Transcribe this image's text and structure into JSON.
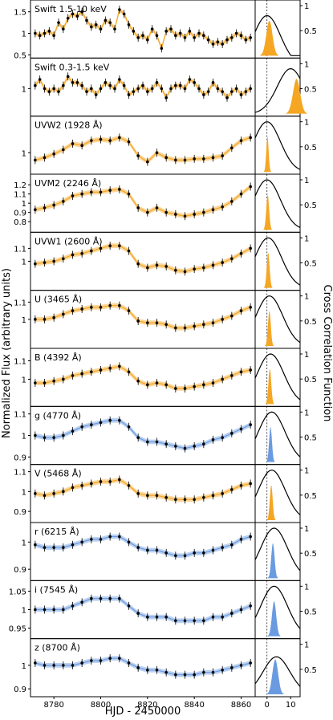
{
  "figure": {
    "ylabel_left": "Normalized Flux (arbitrary units)",
    "ylabel_right": "Cross Correlation Function",
    "xlabel": "HJD - 2450000"
  },
  "chart_data": [
    {
      "type": "line",
      "title": "Swift 1.5-10 keV",
      "color": "#f5a623",
      "xlabel": "HJD - 2450000",
      "ylim": [
        0.5,
        1.7
      ],
      "yticks": [
        1.5,
        1.0,
        0.5
      ],
      "series": [
        {
          "x": [
            8772,
            8774,
            8776,
            8778,
            8780,
            8782,
            8784,
            8786,
            8788,
            8790,
            8792,
            8794,
            8796,
            8798,
            8800,
            8802,
            8804,
            8806,
            8808,
            8810,
            8812,
            8814,
            8816,
            8818,
            8820,
            8822,
            8824,
            8826,
            8828,
            8830,
            8832,
            8834,
            8836,
            8838,
            8840,
            8842,
            8844,
            8846,
            8848,
            8850,
            8852,
            8854,
            8856,
            8858,
            8860,
            8862,
            8864
          ],
          "y": [
            1.0,
            0.95,
            1.0,
            1.05,
            0.95,
            1.25,
            1.1,
            1.35,
            1.45,
            1.4,
            1.5,
            1.3,
            1.15,
            1.2,
            1.1,
            1.3,
            1.25,
            1.1,
            1.55,
            1.45,
            1.2,
            1.05,
            0.9,
            0.95,
            0.85,
            1.1,
            0.95,
            0.65,
            1.05,
            1.1,
            0.95,
            1.0,
            0.9,
            1.05,
            0.9,
            1.0,
            0.95,
            0.85,
            0.75,
            0.8,
            0.75,
            0.85,
            0.9,
            1.0,
            0.95,
            0.85,
            0.9
          ]
        }
      ],
      "ccf": {
        "peak": -1,
        "xpeak": 0,
        "hist": "orange",
        "hist_center": 1.0,
        "hist_width": 1.3
      }
    },
    {
      "type": "line",
      "title": "Swift 0.3-1.5 keV",
      "color": "#f5a623",
      "ylim": [
        0.6,
        1.45
      ],
      "yticks": [
        1.0
      ],
      "series": [
        {
          "x": [
            8772,
            8774,
            8776,
            8778,
            8780,
            8782,
            8784,
            8786,
            8788,
            8790,
            8792,
            8794,
            8796,
            8798,
            8800,
            8802,
            8804,
            8806,
            8808,
            8810,
            8812,
            8814,
            8816,
            8818,
            8820,
            8822,
            8824,
            8826,
            8828,
            8830,
            8832,
            8834,
            8836,
            8838,
            8840,
            8842,
            8844,
            8846,
            8848,
            8850,
            8852,
            8854,
            8856,
            8858,
            8860,
            8862,
            8864
          ],
          "y": [
            1.05,
            1.15,
            1.0,
            0.95,
            1.0,
            0.95,
            1.05,
            1.2,
            1.1,
            1.1,
            1.05,
            0.95,
            1.0,
            0.9,
            1.0,
            1.1,
            1.05,
            1.0,
            1.15,
            1.05,
            0.9,
            0.95,
            1.0,
            1.05,
            0.95,
            1.0,
            1.1,
            1.0,
            0.85,
            1.0,
            1.05,
            1.05,
            1.0,
            1.15,
            1.1,
            1.0,
            0.9,
            0.95,
            1.1,
            1.0,
            0.95,
            0.85,
            0.95,
            1.0,
            0.9,
            0.95,
            1.0
          ]
        }
      ],
      "ccf": {
        "peak": 0.9,
        "xpeak": 10,
        "hist": "orange",
        "hist_center": 12.5,
        "hist_width": 1.5
      }
    },
    {
      "type": "line",
      "title": "UVW2 (1928 Å)",
      "color": "#f5a623",
      "ylim": [
        0.7,
        1.55
      ],
      "yticks": [
        1.0
      ],
      "series": [
        {
          "x": [
            8772,
            8776,
            8780,
            8784,
            8788,
            8792,
            8796,
            8800,
            8804,
            8808,
            8812,
            8816,
            8820,
            8824,
            8828,
            8832,
            8836,
            8840,
            8844,
            8848,
            8852,
            8856,
            8860,
            8864
          ],
          "y": [
            0.88,
            0.92,
            0.98,
            1.05,
            1.15,
            1.12,
            1.2,
            1.22,
            1.2,
            1.25,
            1.18,
            0.95,
            0.85,
            1.0,
            0.92,
            0.88,
            0.88,
            0.9,
            0.9,
            0.92,
            0.95,
            1.08,
            1.2,
            1.25
          ]
        }
      ],
      "ccf": {
        "peak": 1.0,
        "xpeak": 0,
        "hist": "orange",
        "hist_center": 0.2,
        "hist_width": 0.5
      }
    },
    {
      "type": "line",
      "title": "UVM2 (2246 Å)",
      "color": "#f5a623",
      "ylim": [
        0.72,
        1.28
      ],
      "yticks": [
        1.2,
        1.1,
        1.0,
        0.9,
        0.8
      ],
      "series": [
        {
          "x": [
            8772,
            8776,
            8780,
            8784,
            8788,
            8792,
            8796,
            8800,
            8804,
            8808,
            8812,
            8816,
            8820,
            8824,
            8828,
            8832,
            8836,
            8840,
            8844,
            8848,
            8852,
            8856,
            8860,
            8864
          ],
          "y": [
            0.93,
            0.95,
            0.98,
            1.02,
            1.08,
            1.1,
            1.12,
            1.12,
            1.14,
            1.15,
            1.1,
            0.95,
            0.9,
            0.95,
            0.9,
            0.88,
            0.86,
            0.88,
            0.9,
            0.93,
            0.96,
            1.02,
            1.1,
            1.18
          ]
        }
      ],
      "ccf": {
        "peak": 1.0,
        "xpeak": 0,
        "hist": "orange",
        "hist_center": 0.3,
        "hist_width": 0.6
      }
    },
    {
      "type": "line",
      "title": "UVW1 (2600 Å)",
      "color": "#f5a623",
      "ylim": [
        0.8,
        1.2
      ],
      "yticks": [
        1.1,
        1.0
      ],
      "series": [
        {
          "x": [
            8772,
            8776,
            8780,
            8784,
            8788,
            8792,
            8796,
            8800,
            8804,
            8808,
            8812,
            8816,
            8820,
            8824,
            8828,
            8832,
            8836,
            8840,
            8844,
            8848,
            8852,
            8856,
            8860,
            8864
          ],
          "y": [
            0.98,
            0.99,
            1.0,
            1.02,
            1.05,
            1.06,
            1.08,
            1.1,
            1.12,
            1.12,
            1.08,
            0.98,
            0.95,
            0.97,
            0.96,
            0.93,
            0.92,
            0.94,
            0.95,
            0.97,
            0.99,
            1.02,
            1.06,
            1.1
          ]
        }
      ],
      "ccf": {
        "peak": 1.0,
        "xpeak": 0.5,
        "hist": "orange",
        "hist_center": 0.5,
        "hist_width": 0.6
      }
    },
    {
      "type": "line",
      "title": "U (3465 Å)",
      "color": "#f5a623",
      "ylim": [
        0.85,
        1.15
      ],
      "yticks": [
        1.1,
        1.0
      ],
      "series": [
        {
          "x": [
            8772,
            8776,
            8780,
            8784,
            8788,
            8792,
            8796,
            8800,
            8804,
            8808,
            8812,
            8816,
            8820,
            8824,
            8828,
            8832,
            8836,
            8840,
            8844,
            8848,
            8852,
            8856,
            8860,
            8864
          ],
          "y": [
            1.0,
            1.0,
            1.01,
            1.03,
            1.05,
            1.06,
            1.07,
            1.07,
            1.08,
            1.08,
            1.05,
            0.99,
            0.98,
            0.98,
            0.97,
            0.95,
            0.95,
            0.96,
            0.97,
            0.98,
            1.0,
            1.02,
            1.05,
            1.07
          ]
        }
      ],
      "ccf": {
        "peak": 1.0,
        "xpeak": 1.0,
        "hist": "orange",
        "hist_center": 1.0,
        "hist_width": 0.6
      }
    },
    {
      "type": "line",
      "title": "B (4392 Å)",
      "color": "#f5a623",
      "ylim": [
        0.87,
        1.15
      ],
      "yticks": [
        1.1,
        1.0
      ],
      "series": [
        {
          "x": [
            8772,
            8776,
            8780,
            8784,
            8788,
            8792,
            8796,
            8800,
            8804,
            8808,
            8812,
            8816,
            8820,
            8824,
            8828,
            8832,
            8836,
            8840,
            8844,
            8848,
            8852,
            8856,
            8860,
            8864
          ],
          "y": [
            0.98,
            0.98,
            0.99,
            1.0,
            1.02,
            1.03,
            1.04,
            1.05,
            1.06,
            1.07,
            1.04,
            0.99,
            0.97,
            0.98,
            0.97,
            0.95,
            0.95,
            0.96,
            0.97,
            0.98,
            1.0,
            1.02,
            1.04,
            1.05
          ]
        }
      ],
      "ccf": {
        "peak": 1.0,
        "xpeak": 1.5,
        "hist": "orange",
        "hist_center": 1.2,
        "hist_width": 0.6
      }
    },
    {
      "type": "line",
      "title": "g (4770 Å)",
      "color": "#6a9be0",
      "ylim": [
        0.88,
        1.12
      ],
      "yticks": [
        1.1,
        1.0,
        0.9
      ],
      "series": [
        {
          "x": [
            8772,
            8776,
            8780,
            8784,
            8788,
            8792,
            8796,
            8800,
            8804,
            8808,
            8812,
            8816,
            8820,
            8824,
            8828,
            8832,
            8836,
            8840,
            8844,
            8848,
            8852,
            8856,
            8860,
            8864
          ],
          "y": [
            1.0,
            0.99,
            0.99,
            1.0,
            1.02,
            1.04,
            1.05,
            1.06,
            1.07,
            1.07,
            1.04,
            0.99,
            0.97,
            0.97,
            0.96,
            0.95,
            0.94,
            0.95,
            0.96,
            0.98,
            0.99,
            1.01,
            1.03,
            1.05
          ]
        }
      ],
      "ccf": {
        "peak": 1.0,
        "xpeak": 2,
        "hist": "blue",
        "hist_center": 1.5,
        "hist_width": 0.6
      }
    },
    {
      "type": "line",
      "title": "V (5468 Å)",
      "color": "#f5a623",
      "ylim": [
        0.86,
        1.12
      ],
      "yticks": [
        1.1,
        1.0,
        0.9
      ],
      "series": [
        {
          "x": [
            8772,
            8776,
            8780,
            8784,
            8788,
            8792,
            8796,
            8800,
            8804,
            8808,
            8812,
            8816,
            8820,
            8824,
            8828,
            8832,
            8836,
            8840,
            8844,
            8848,
            8852,
            8856,
            8860,
            8864
          ],
          "y": [
            0.99,
            0.98,
            0.99,
            1.0,
            1.02,
            1.03,
            1.04,
            1.05,
            1.05,
            1.06,
            1.03,
            0.99,
            0.98,
            0.98,
            0.97,
            0.96,
            0.96,
            0.96,
            0.97,
            0.98,
            0.99,
            1.01,
            1.03,
            1.04
          ]
        }
      ],
      "ccf": {
        "peak": 1.0,
        "xpeak": 2,
        "hist": "orange",
        "hist_center": 1.8,
        "hist_width": 0.6
      }
    },
    {
      "type": "line",
      "title": "r (6215 Å)",
      "color": "#6a9be0",
      "ylim": [
        0.87,
        1.06
      ],
      "yticks": [
        1.0,
        0.9
      ],
      "series": [
        {
          "x": [
            8772,
            8776,
            8780,
            8784,
            8788,
            8792,
            8796,
            8800,
            8804,
            8808,
            8812,
            8816,
            8820,
            8824,
            8828,
            8832,
            8836,
            8840,
            8844,
            8848,
            8852,
            8856,
            8860,
            8864
          ],
          "y": [
            0.99,
            0.98,
            0.98,
            0.98,
            0.99,
            1.0,
            1.01,
            1.01,
            1.02,
            1.02,
            1.0,
            0.98,
            0.97,
            0.97,
            0.96,
            0.95,
            0.95,
            0.96,
            0.96,
            0.97,
            0.98,
            0.99,
            1.01,
            1.02
          ]
        }
      ],
      "ccf": {
        "peak": 1.0,
        "xpeak": 3,
        "hist": "blue",
        "hist_center": 2.5,
        "hist_width": 0.7
      }
    },
    {
      "type": "line",
      "title": "i (7545 Å)",
      "color": "#6a9be0",
      "ylim": [
        0.93,
        1.07
      ],
      "yticks": [
        1.05,
        1.0,
        0.95
      ],
      "series": [
        {
          "x": [
            8772,
            8776,
            8780,
            8784,
            8788,
            8792,
            8796,
            8800,
            8804,
            8808,
            8812,
            8816,
            8820,
            8824,
            8828,
            8832,
            8836,
            8840,
            8844,
            8848,
            8852,
            8856,
            8860,
            8864
          ],
          "y": [
            1.0,
            1.0,
            1.0,
            1.0,
            1.01,
            1.02,
            1.03,
            1.03,
            1.03,
            1.03,
            1.01,
            0.99,
            0.98,
            0.98,
            0.98,
            0.97,
            0.97,
            0.97,
            0.97,
            0.98,
            0.98,
            0.99,
            1.0,
            1.01
          ]
        }
      ],
      "ccf": {
        "peak": 1.0,
        "xpeak": 3,
        "hist": "blue",
        "hist_center": 3.0,
        "hist_width": 0.9
      }
    },
    {
      "type": "line",
      "title": "z (8700 Å)",
      "color": "#6a9be0",
      "xlabel": "HJD - 2450000",
      "xticks": [
        8780,
        8800,
        8820,
        8840,
        8860
      ],
      "ccf_xticks": [
        0,
        10
      ],
      "ylim": [
        0.88,
        1.1
      ],
      "yticks": [
        1.0,
        0.9
      ],
      "series": [
        {
          "x": [
            8772,
            8776,
            8780,
            8784,
            8788,
            8792,
            8796,
            8800,
            8804,
            8808,
            8812,
            8816,
            8820,
            8824,
            8828,
            8832,
            8836,
            8840,
            8844,
            8848,
            8852,
            8856,
            8860,
            8864
          ],
          "y": [
            1.01,
            1.0,
            1.0,
            1.0,
            1.0,
            1.01,
            1.02,
            1.02,
            1.03,
            1.03,
            1.01,
            0.99,
            0.98,
            0.98,
            0.97,
            0.96,
            0.96,
            0.96,
            0.97,
            0.97,
            0.98,
            0.99,
            1.0,
            1.01
          ]
        }
      ],
      "ccf": {
        "peak": 0.75,
        "xpeak": 4,
        "hist": "blue",
        "hist_center": 3.5,
        "hist_width": 1.2
      }
    }
  ]
}
